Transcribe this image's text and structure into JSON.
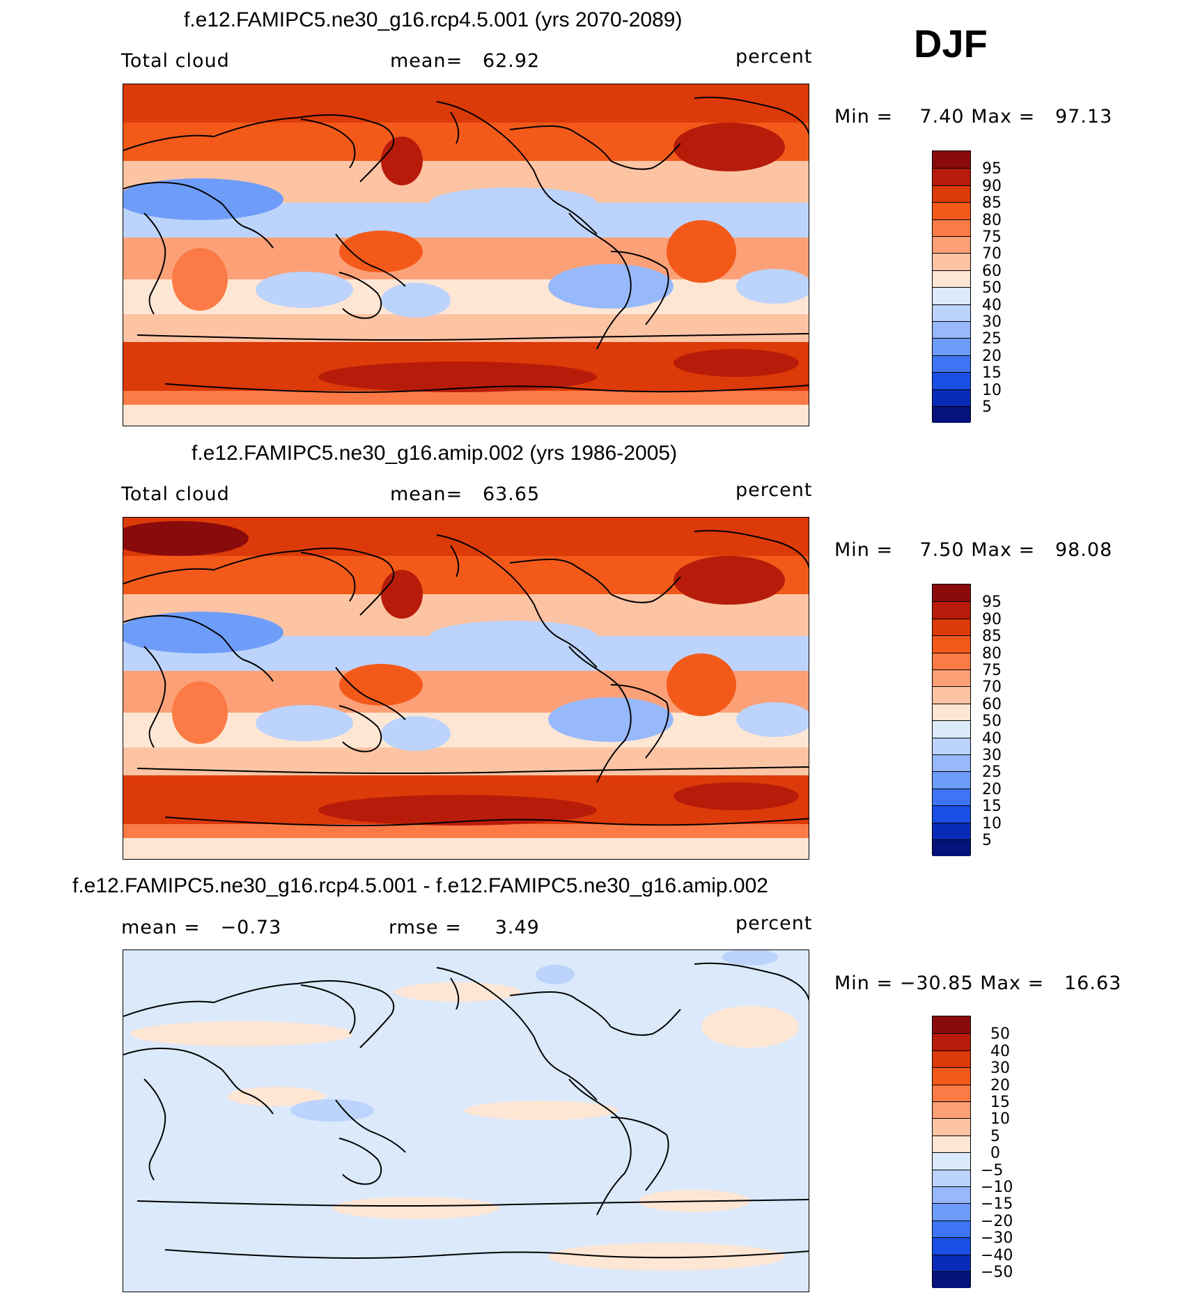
{
  "season": "DJF",
  "panels": [
    {
      "title": "f.e12.FAMIPC5.ne30_g16.rcp4.5.001 (yrs 2070-2089)",
      "left_label": "Total cloud",
      "mid_label": "mean=   62.92",
      "right_label": "percent",
      "min_label": "Min =",
      "min_value": "7.40",
      "max_label": "Max =",
      "max_value": "97.13",
      "colorbar": {
        "levels": [
          "95",
          "90",
          "85",
          "80",
          "75",
          "70",
          "60",
          "50",
          "40",
          "30",
          "25",
          "20",
          "15",
          "10",
          "5"
        ],
        "colors": [
          "#8a0b0b",
          "#b71c0a",
          "#dc3a08",
          "#f35a1a",
          "#fb7a45",
          "#fca077",
          "#fdc4a4",
          "#fee6d4",
          "#dbe9fb",
          "#bcd3fb",
          "#97b9fb",
          "#6e9cf9",
          "#3e75f5",
          "#1a4fe6",
          "#0a2bb8",
          "#06137a"
        ]
      },
      "fields": [
        "mid",
        "tropics",
        "subtropic_lows",
        "southern_ocean_high",
        "antarctic_low"
      ]
    },
    {
      "title": "f.e12.FAMIPC5.ne30_g16.amip.002 (yrs 1986-2005)",
      "left_label": "Total cloud",
      "mid_label": "mean=   63.65",
      "right_label": "percent",
      "min_label": "Min =",
      "min_value": "7.50",
      "max_label": "Max =",
      "max_value": "98.08",
      "colorbar": {
        "levels": [
          "95",
          "90",
          "85",
          "80",
          "75",
          "70",
          "60",
          "50",
          "40",
          "30",
          "25",
          "20",
          "15",
          "10",
          "5"
        ],
        "colors": [
          "#8a0b0b",
          "#b71c0a",
          "#dc3a08",
          "#f35a1a",
          "#fb7a45",
          "#fca077",
          "#fdc4a4",
          "#fee6d4",
          "#dbe9fb",
          "#bcd3fb",
          "#97b9fb",
          "#6e9cf9",
          "#3e75f5",
          "#1a4fe6",
          "#0a2bb8",
          "#06137a"
        ]
      }
    },
    {
      "title": "f.e12.FAMIPC5.ne30_g16.rcp4.5.001 - f.e12.FAMIPC5.ne30_g16.amip.002",
      "left_label": "mean =   −0.73",
      "mid_label": "rmse =     3.49",
      "right_label": "percent",
      "min_label": "Min = ",
      "min_value": "−30.85",
      "max_label": "Max =",
      "max_value": "16.63",
      "colorbar": {
        "levels": [
          "50",
          "40",
          "30",
          "20",
          "15",
          "10",
          "5",
          "0",
          "−5",
          "−10",
          "−15",
          "−20",
          "−30",
          "−40",
          "−50"
        ],
        "colors": [
          "#8a0b0b",
          "#b71c0a",
          "#dc3a08",
          "#f35a1a",
          "#fb7a45",
          "#fca077",
          "#fdc4a4",
          "#fee6d4",
          "#dbe9fb",
          "#bcd3fb",
          "#97b9fb",
          "#6e9cf9",
          "#3e75f5",
          "#1a4fe6",
          "#0a2bb8",
          "#06137a"
        ]
      }
    }
  ]
}
